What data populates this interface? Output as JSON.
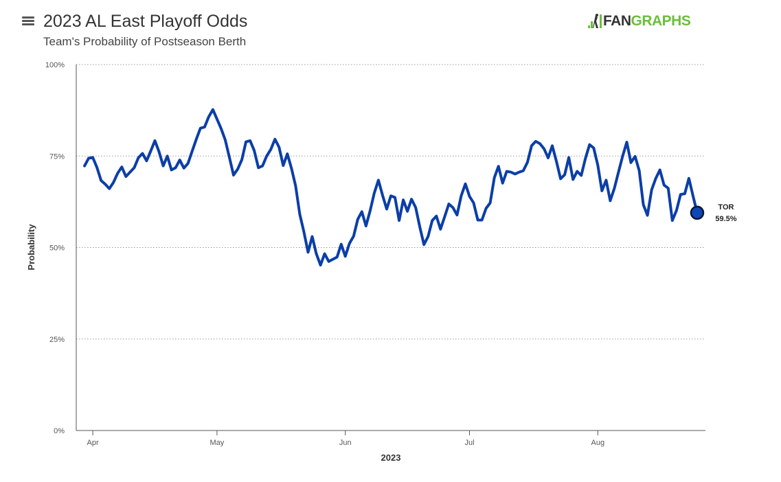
{
  "header": {
    "title": "2023 AL East Playoff Odds",
    "subtitle": "Team's Probability of Postseason Berth",
    "menu_icon": "hamburger-menu-icon",
    "logo": {
      "fan": "FAN",
      "graphs": "GRAPHS"
    }
  },
  "colors": {
    "line": "#0b3ea8",
    "marker_fill": "#0d47b8",
    "marker_stroke": "#0a1633",
    "grid": "#9a9a9a",
    "logo_green": "#6bbf3b"
  },
  "chart_data": {
    "type": "line",
    "xlabel": "2023",
    "ylabel": "Probability",
    "ylim": [
      0,
      100
    ],
    "y_ticks": [
      {
        "value": 0,
        "label": "0%"
      },
      {
        "value": 25,
        "label": "25%"
      },
      {
        "value": 50,
        "label": "50%"
      },
      {
        "value": 75,
        "label": "75%"
      },
      {
        "value": 100,
        "label": "100%"
      }
    ],
    "xlim": [
      "2023-03-28",
      "2023-08-27"
    ],
    "x_ticks": [
      {
        "value": "2023-04-01",
        "label": "Apr"
      },
      {
        "value": "2023-05-01",
        "label": "May"
      },
      {
        "value": "2023-06-01",
        "label": "Jun"
      },
      {
        "value": "2023-07-01",
        "label": "Jul"
      },
      {
        "value": "2023-08-01",
        "label": "Aug"
      }
    ],
    "grid": "horizontal-dotted",
    "series": [
      {
        "name": "TOR",
        "end_label": "TOR",
        "end_value_label": "59.5%",
        "points": [
          [
            "2023-03-30",
            72.3
          ],
          [
            "2023-03-31",
            74.4
          ],
          [
            "2023-04-01",
            74.6
          ],
          [
            "2023-04-02",
            71.9
          ],
          [
            "2023-04-03",
            68.3
          ],
          [
            "2023-04-04",
            67.3
          ],
          [
            "2023-04-05",
            66.1
          ],
          [
            "2023-04-06",
            67.8
          ],
          [
            "2023-04-07",
            70.3
          ],
          [
            "2023-04-08",
            72.0
          ],
          [
            "2023-04-09",
            69.4
          ],
          [
            "2023-04-10",
            70.6
          ],
          [
            "2023-04-11",
            71.8
          ],
          [
            "2023-04-12",
            74.5
          ],
          [
            "2023-04-13",
            75.7
          ],
          [
            "2023-04-14",
            73.7
          ],
          [
            "2023-04-15",
            76.4
          ],
          [
            "2023-04-16",
            79.2
          ],
          [
            "2023-04-17",
            76.2
          ],
          [
            "2023-04-18",
            72.3
          ],
          [
            "2023-04-19",
            75.0
          ],
          [
            "2023-04-20",
            71.2
          ],
          [
            "2023-04-21",
            71.8
          ],
          [
            "2023-04-22",
            73.9
          ],
          [
            "2023-04-23",
            71.7
          ],
          [
            "2023-04-24",
            73.0
          ],
          [
            "2023-04-25",
            76.3
          ],
          [
            "2023-04-26",
            79.6
          ],
          [
            "2023-04-27",
            82.6
          ],
          [
            "2023-04-28",
            82.9
          ],
          [
            "2023-04-29",
            85.7
          ],
          [
            "2023-04-30",
            87.7
          ],
          [
            "2023-05-01",
            85.1
          ],
          [
            "2023-05-02",
            82.5
          ],
          [
            "2023-05-03",
            79.4
          ],
          [
            "2023-05-04",
            74.6
          ],
          [
            "2023-05-05",
            69.8
          ],
          [
            "2023-05-06",
            71.4
          ],
          [
            "2023-05-07",
            74.0
          ],
          [
            "2023-05-08",
            78.9
          ],
          [
            "2023-05-09",
            79.2
          ],
          [
            "2023-05-10",
            76.5
          ],
          [
            "2023-05-11",
            71.8
          ],
          [
            "2023-05-12",
            72.3
          ],
          [
            "2023-05-13",
            75.0
          ],
          [
            "2023-05-14",
            76.8
          ],
          [
            "2023-05-15",
            79.6
          ],
          [
            "2023-05-16",
            77.4
          ],
          [
            "2023-05-17",
            72.4
          ],
          [
            "2023-05-18",
            75.6
          ],
          [
            "2023-05-19",
            71.6
          ],
          [
            "2023-05-20",
            66.8
          ],
          [
            "2023-05-21",
            59.1
          ],
          [
            "2023-05-22",
            54.3
          ],
          [
            "2023-05-23",
            48.7
          ],
          [
            "2023-05-24",
            53.0
          ],
          [
            "2023-05-25",
            48.3
          ],
          [
            "2023-05-26",
            45.2
          ],
          [
            "2023-05-27",
            48.3
          ],
          [
            "2023-05-28",
            46.2
          ],
          [
            "2023-05-29",
            46.8
          ],
          [
            "2023-05-30",
            47.4
          ],
          [
            "2023-05-31",
            50.9
          ],
          [
            "2023-06-01",
            47.6
          ],
          [
            "2023-06-02",
            51.1
          ],
          [
            "2023-06-03",
            53.1
          ],
          [
            "2023-06-04",
            57.7
          ],
          [
            "2023-06-05",
            59.8
          ],
          [
            "2023-06-06",
            55.9
          ],
          [
            "2023-06-07",
            60.1
          ],
          [
            "2023-06-08",
            64.9
          ],
          [
            "2023-06-09",
            68.4
          ],
          [
            "2023-06-10",
            64.3
          ],
          [
            "2023-06-11",
            60.5
          ],
          [
            "2023-06-12",
            64.1
          ],
          [
            "2023-06-13",
            63.7
          ],
          [
            "2023-06-14",
            57.4
          ],
          [
            "2023-06-15",
            63.0
          ],
          [
            "2023-06-16",
            59.9
          ],
          [
            "2023-06-17",
            63.2
          ],
          [
            "2023-06-18",
            60.9
          ],
          [
            "2023-06-19",
            55.6
          ],
          [
            "2023-06-20",
            50.8
          ],
          [
            "2023-06-21",
            53.0
          ],
          [
            "2023-06-22",
            57.4
          ],
          [
            "2023-06-23",
            58.6
          ],
          [
            "2023-06-24",
            55.0
          ],
          [
            "2023-06-25",
            58.4
          ],
          [
            "2023-06-26",
            61.9
          ],
          [
            "2023-06-27",
            60.9
          ],
          [
            "2023-06-28",
            58.9
          ],
          [
            "2023-06-29",
            64.1
          ],
          [
            "2023-06-30",
            67.4
          ],
          [
            "2023-07-01",
            64.0
          ],
          [
            "2023-07-02",
            62.2
          ],
          [
            "2023-07-03",
            57.5
          ],
          [
            "2023-07-04",
            57.5
          ],
          [
            "2023-07-05",
            60.7
          ],
          [
            "2023-07-06",
            62.2
          ],
          [
            "2023-07-07",
            69.1
          ],
          [
            "2023-07-08",
            72.2
          ],
          [
            "2023-07-09",
            67.6
          ],
          [
            "2023-07-10",
            70.8
          ],
          [
            "2023-07-11",
            70.6
          ],
          [
            "2023-07-12",
            70.1
          ],
          [
            "2023-07-13",
            70.6
          ],
          [
            "2023-07-14",
            71.0
          ],
          [
            "2023-07-15",
            73.3
          ],
          [
            "2023-07-16",
            77.8
          ],
          [
            "2023-07-17",
            79.0
          ],
          [
            "2023-07-18",
            78.4
          ],
          [
            "2023-07-19",
            77.0
          ],
          [
            "2023-07-20",
            74.5
          ],
          [
            "2023-07-21",
            77.8
          ],
          [
            "2023-07-22",
            73.5
          ],
          [
            "2023-07-23",
            68.8
          ],
          [
            "2023-07-24",
            69.9
          ],
          [
            "2023-07-25",
            74.6
          ],
          [
            "2023-07-26",
            68.6
          ],
          [
            "2023-07-27",
            70.8
          ],
          [
            "2023-07-28",
            69.7
          ],
          [
            "2023-07-29",
            74.3
          ],
          [
            "2023-07-30",
            78.1
          ],
          [
            "2023-07-31",
            77.2
          ],
          [
            "2023-08-01",
            72.5
          ],
          [
            "2023-08-02",
            65.5
          ],
          [
            "2023-08-03",
            68.4
          ],
          [
            "2023-08-04",
            62.8
          ],
          [
            "2023-08-05",
            66.2
          ],
          [
            "2023-08-06",
            70.6
          ],
          [
            "2023-08-07",
            75.0
          ],
          [
            "2023-08-08",
            78.8
          ],
          [
            "2023-08-09",
            73.2
          ],
          [
            "2023-08-10",
            74.9
          ],
          [
            "2023-08-11",
            71.0
          ],
          [
            "2023-08-12",
            61.7
          ],
          [
            "2023-08-13",
            58.8
          ],
          [
            "2023-08-14",
            65.8
          ],
          [
            "2023-08-15",
            68.9
          ],
          [
            "2023-08-16",
            71.2
          ],
          [
            "2023-08-17",
            67.1
          ],
          [
            "2023-08-18",
            66.2
          ],
          [
            "2023-08-19",
            57.4
          ],
          [
            "2023-08-20",
            60.1
          ],
          [
            "2023-08-21",
            64.5
          ],
          [
            "2023-08-22",
            64.7
          ],
          [
            "2023-08-23",
            68.9
          ],
          [
            "2023-08-24",
            64.1
          ],
          [
            "2023-08-25",
            59.5
          ]
        ]
      }
    ]
  }
}
